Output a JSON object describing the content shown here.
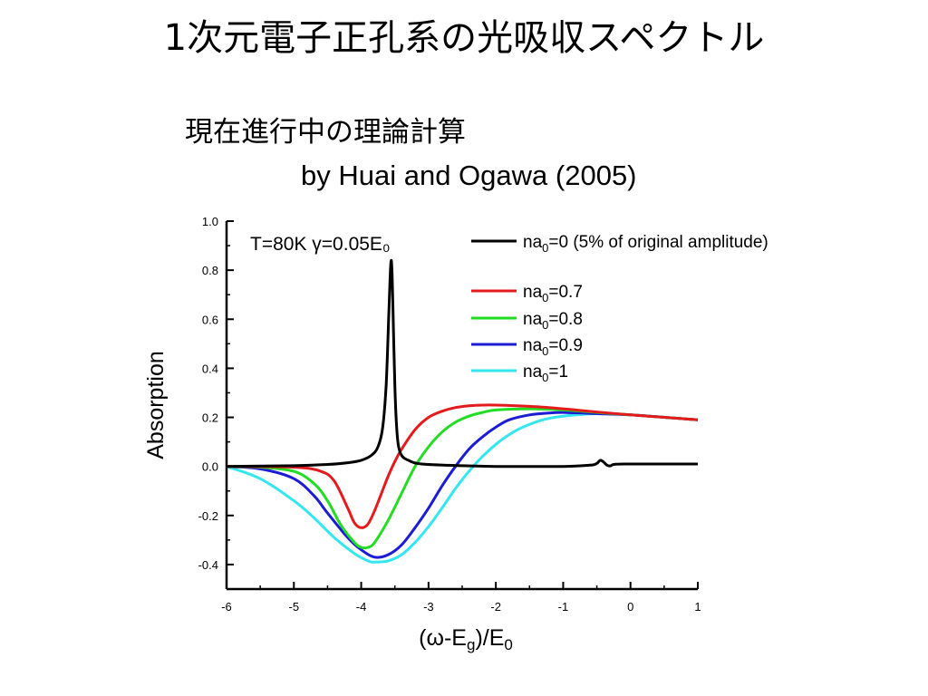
{
  "slide": {
    "title": "1次元電子正孔系の光吸収スペクトル",
    "subtitle": "現在進行中の理論計算",
    "credit": "by Huai and Ogawa (2005)"
  },
  "chart_data": {
    "type": "line",
    "annotation": "T=80K γ=0.05E₀",
    "xlabel": "(ω-Eg)/E0",
    "ylabel": "Absorption",
    "xlim": [
      -6,
      1
    ],
    "ylim": [
      -0.5,
      1.0
    ],
    "xticks": [
      -6,
      -5,
      -4,
      -3,
      -2,
      -1,
      0,
      1
    ],
    "xtick_labels": [
      "-6",
      "-5",
      "-4",
      "-3",
      "-2",
      "-1",
      "0",
      "1"
    ],
    "yticks": [
      -0.4,
      -0.2,
      0.0,
      0.2,
      0.4,
      0.6,
      0.8,
      1.0
    ],
    "ytick_labels": [
      "-0.4",
      "-0.2",
      "0.0",
      "0.2",
      "0.4",
      "0.6",
      "0.8",
      "1.0"
    ],
    "grid": false,
    "legend_position": "top-right",
    "series": [
      {
        "name": "na0=0 (5% of original amplitude)",
        "color": "#000000",
        "x": [
          -6,
          -5,
          -4.5,
          -4.2,
          -4.0,
          -3.85,
          -3.75,
          -3.68,
          -3.63,
          -3.59,
          -3.56,
          -3.54,
          -3.52,
          -3.5,
          -3.48,
          -3.45,
          -3.4,
          -3.3,
          -3.1,
          -2.5,
          -2.0,
          -1.5,
          -1.0,
          -0.6,
          -0.5,
          -0.45,
          -0.4,
          -0.35,
          -0.3,
          -0.25,
          -0.1,
          0.5,
          1.0
        ],
        "y": [
          0.0,
          0.003,
          0.008,
          0.015,
          0.025,
          0.045,
          0.08,
          0.16,
          0.33,
          0.62,
          0.83,
          0.78,
          0.55,
          0.33,
          0.19,
          0.09,
          0.045,
          0.025,
          0.01,
          0.003,
          0.0,
          0.0,
          0.0,
          0.005,
          0.012,
          0.025,
          0.018,
          0.005,
          0.002,
          0.008,
          0.01,
          0.01,
          0.01
        ]
      },
      {
        "name": "na0=0.7",
        "color": "#e41a1c",
        "x": [
          -6,
          -5,
          -4.6,
          -4.4,
          -4.2,
          -4.1,
          -4.0,
          -3.9,
          -3.8,
          -3.7,
          -3.6,
          -3.5,
          -3.4,
          -3.2,
          -3.0,
          -2.8,
          -2.6,
          -2.4,
          -2.2,
          -2.0,
          -1.5,
          -1.0,
          -0.5,
          0,
          0.5,
          1.0
        ],
        "y": [
          0.0,
          -0.003,
          -0.02,
          -0.06,
          -0.17,
          -0.23,
          -0.25,
          -0.235,
          -0.18,
          -0.11,
          -0.04,
          0.02,
          0.07,
          0.15,
          0.2,
          0.225,
          0.24,
          0.247,
          0.25,
          0.25,
          0.245,
          0.235,
          0.222,
          0.21,
          0.2,
          0.19
        ]
      },
      {
        "name": "na0=0.8",
        "color": "#22dd22",
        "x": [
          -6,
          -5.5,
          -5,
          -4.7,
          -4.5,
          -4.3,
          -4.1,
          -4.0,
          -3.9,
          -3.8,
          -3.6,
          -3.4,
          -3.2,
          -3.0,
          -2.8,
          -2.6,
          -2.4,
          -2.2,
          -2.0,
          -1.5,
          -1.0,
          -0.5,
          0,
          0.5,
          1.0
        ],
        "y": [
          0.0,
          -0.003,
          -0.02,
          -0.07,
          -0.14,
          -0.24,
          -0.31,
          -0.33,
          -0.33,
          -0.31,
          -0.22,
          -0.11,
          0.0,
          0.08,
          0.14,
          0.18,
          0.205,
          0.22,
          0.23,
          0.235,
          0.23,
          0.22,
          0.21,
          0.2,
          0.19
        ]
      },
      {
        "name": "na0=0.9",
        "color": "#1c1cd4",
        "x": [
          -6,
          -5.5,
          -5,
          -4.7,
          -4.5,
          -4.2,
          -4.0,
          -3.8,
          -3.6,
          -3.4,
          -3.2,
          -3.0,
          -2.8,
          -2.6,
          -2.4,
          -2.2,
          -2.0,
          -1.8,
          -1.5,
          -1.2,
          -1.0,
          -0.5,
          0,
          0.5,
          1.0
        ],
        "y": [
          0.0,
          -0.01,
          -0.05,
          -0.12,
          -0.19,
          -0.29,
          -0.34,
          -0.37,
          -0.36,
          -0.32,
          -0.25,
          -0.17,
          -0.08,
          0.0,
          0.07,
          0.12,
          0.16,
          0.19,
          0.21,
          0.218,
          0.22,
          0.215,
          0.21,
          0.2,
          0.19
        ]
      },
      {
        "name": "na0=1",
        "color": "#33e6f0",
        "x": [
          -6,
          -5.5,
          -5,
          -4.7,
          -4.4,
          -4.1,
          -3.9,
          -3.8,
          -3.6,
          -3.4,
          -3.2,
          -3.0,
          -2.8,
          -2.6,
          -2.4,
          -2.2,
          -2.0,
          -1.8,
          -1.6,
          -1.3,
          -1.0,
          -0.5,
          0,
          0.5,
          1.0
        ],
        "y": [
          0.0,
          -0.05,
          -0.14,
          -0.21,
          -0.29,
          -0.355,
          -0.385,
          -0.39,
          -0.385,
          -0.36,
          -0.31,
          -0.245,
          -0.17,
          -0.09,
          -0.02,
          0.04,
          0.09,
          0.13,
          0.16,
          0.19,
          0.205,
          0.215,
          0.21,
          0.2,
          0.19
        ]
      }
    ]
  }
}
